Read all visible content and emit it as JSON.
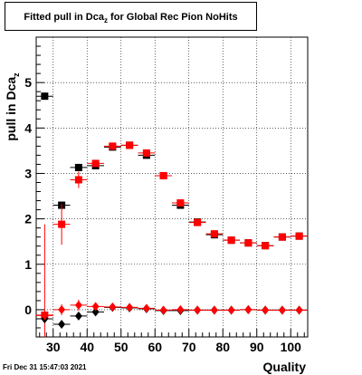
{
  "title": {
    "prefix": "Fitted pull in Dca",
    "subscript": "z",
    "suffix": " for Global Rec Pion NoHits"
  },
  "footer": {
    "date": "Fri Dec 31 15:47:03 2021"
  },
  "chart_data": {
    "type": "scatter",
    "title": "Fitted pull in Dca_z for Global Rec Pion NoHits",
    "xlabel": "Quality",
    "ylabel": "pull in Dca",
    "ylabel_subscript": "z",
    "xlim": [
      25,
      105
    ],
    "ylim": [
      -0.6,
      6.0
    ],
    "x_ticks": [
      30,
      40,
      50,
      60,
      70,
      80,
      90,
      100
    ],
    "y_ticks": [
      0,
      1,
      2,
      3,
      4,
      5
    ],
    "grid": true,
    "x_bin_halfwidth": 2.5,
    "series": [
      {
        "marker": "square",
        "color": "#000000",
        "x": [
          27.5,
          32.5,
          37.5,
          42.5,
          47.5,
          52.5,
          57.5,
          62.5,
          67.5,
          72.5,
          77.5,
          82.5,
          87.5,
          92.5,
          97.5,
          102.5
        ],
        "y": [
          4.7,
          2.3,
          3.13,
          3.17,
          3.58,
          3.62,
          3.4,
          2.95,
          2.3,
          1.93,
          1.65,
          1.53,
          1.47,
          1.41,
          1.6,
          1.62
        ],
        "yerr": [
          0,
          0,
          0.08,
          0.06,
          0,
          0,
          0,
          0,
          0,
          0,
          0,
          0,
          0,
          0,
          0,
          0
        ]
      },
      {
        "marker": "square",
        "color": "#ff0000",
        "x": [
          27.5,
          32.5,
          37.5,
          42.5,
          47.5,
          52.5,
          57.5,
          62.5,
          67.5,
          72.5,
          77.5,
          82.5,
          87.5,
          92.5,
          97.5,
          102.5
        ],
        "y": [
          -0.12,
          1.88,
          2.86,
          3.22,
          3.6,
          3.62,
          3.45,
          2.95,
          2.35,
          1.92,
          1.67,
          1.53,
          1.47,
          1.41,
          1.6,
          1.62
        ],
        "yerr": [
          2.0,
          0.45,
          0.18,
          0.08,
          0.04,
          0.04,
          0.04,
          0.04,
          0.04,
          0.03,
          0.03,
          0.03,
          0.03,
          0.03,
          0.03,
          0.03
        ]
      },
      {
        "marker": "diamond",
        "color": "#000000",
        "x": [
          27.5,
          32.5,
          37.5,
          42.5,
          47.5,
          52.5,
          57.5,
          62.5,
          67.5,
          72.5,
          77.5,
          82.5,
          87.5,
          92.5,
          97.5,
          102.5
        ],
        "y": [
          -0.2,
          -0.32,
          -0.14,
          -0.05,
          0.05,
          0.04,
          0.02,
          -0.02,
          -0.02,
          -0.01,
          -0.01,
          -0.01,
          0.0,
          -0.01,
          -0.01,
          -0.01
        ],
        "yerr": [
          0,
          0,
          0,
          0,
          0,
          0,
          0,
          0,
          0,
          0,
          0,
          0,
          0,
          0,
          0,
          0
        ]
      },
      {
        "marker": "diamond",
        "color": "#ff0000",
        "x": [
          27.5,
          32.5,
          37.5,
          42.5,
          47.5,
          52.5,
          57.5,
          62.5,
          67.5,
          72.5,
          77.5,
          82.5,
          87.5,
          92.5,
          97.5,
          102.5
        ],
        "y": [
          -0.13,
          0.0,
          0.1,
          0.07,
          0.06,
          0.05,
          0.03,
          -0.01,
          0.0,
          -0.01,
          -0.01,
          -0.01,
          0.0,
          -0.01,
          -0.01,
          -0.01
        ],
        "yerr": [
          0.1,
          0.12,
          0.12,
          0.05,
          0.03,
          0.02,
          0.02,
          0.02,
          0.02,
          0.02,
          0.02,
          0.02,
          0.02,
          0.02,
          0.02,
          0.02
        ]
      }
    ]
  }
}
